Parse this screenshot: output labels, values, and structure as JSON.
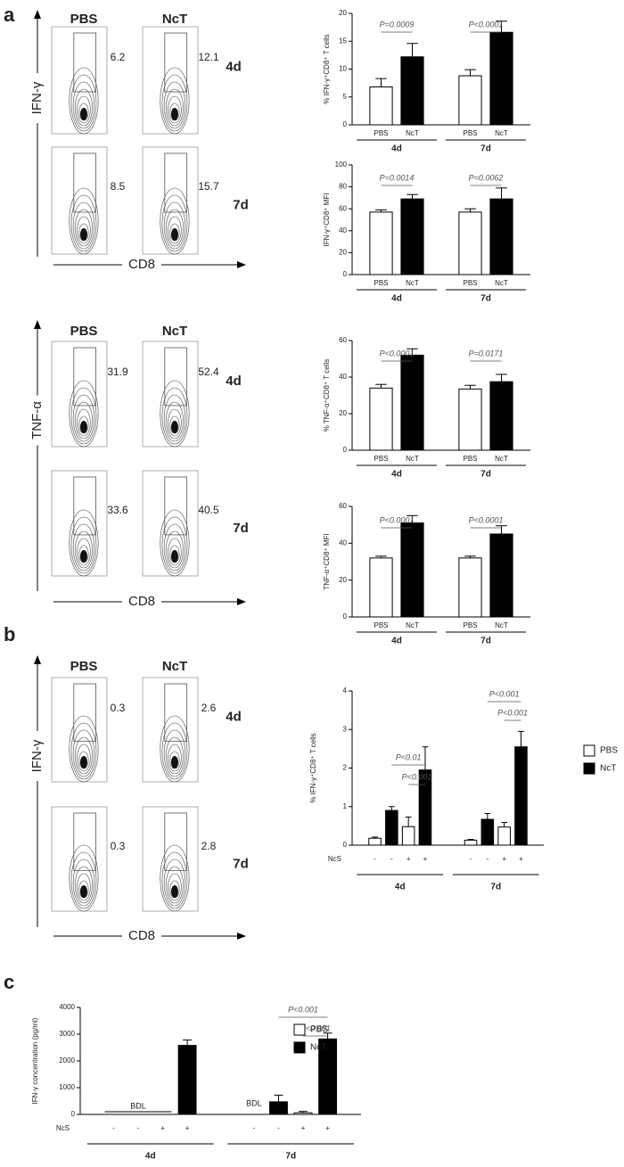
{
  "panel_labels": [
    "a",
    "b",
    "c"
  ],
  "flow": [
    {
      "y_label": "IFN-γ",
      "x_label": "CD8",
      "columns": [
        "PBS",
        "NcT"
      ],
      "rows": [
        "4d",
        "7d"
      ],
      "gates": [
        [
          6.2,
          12.1
        ],
        [
          8.5,
          15.7
        ]
      ]
    },
    {
      "y_label": "TNF-α",
      "x_label": "CD8",
      "columns": [
        "PBS",
        "NcT"
      ],
      "rows": [
        "4d",
        "7d"
      ],
      "gates": [
        [
          31.9,
          52.4
        ],
        [
          33.6,
          40.5
        ]
      ]
    },
    {
      "y_label": "IFN-γ",
      "x_label": "CD8",
      "columns": [
        "PBS",
        "NcT"
      ],
      "rows": [
        "4d",
        "7d"
      ],
      "gates": [
        [
          0.3,
          2.6
        ],
        [
          0.3,
          2.8
        ]
      ]
    }
  ],
  "chart_data": [
    {
      "type": "bar",
      "y_label": "% IFN-γ⁺CD8⁺ T cells",
      "ylim": [
        0,
        20
      ],
      "yticks": [
        0,
        5,
        10,
        15,
        20
      ],
      "values": [
        6.8,
        12.2,
        8.8,
        16.6
      ],
      "errors": [
        1.5,
        2.4,
        1.1,
        2.0
      ],
      "fills": [
        "#ffffff",
        "#000000",
        "#ffffff",
        "#000000"
      ],
      "bar_labels": [
        "PBS",
        "NcT",
        "PBS",
        "NcT"
      ],
      "groups": [
        "4d",
        "7d"
      ],
      "comparisons": [
        {
          "from": 0,
          "to": 1,
          "label": "P=0.0009"
        },
        {
          "from": 2,
          "to": 3,
          "label": "P<0.0001"
        }
      ]
    },
    {
      "type": "bar",
      "y_label": "IFN-γ⁺CD8⁺ MFI",
      "ylim": [
        0,
        100
      ],
      "yticks": [
        0,
        20,
        40,
        60,
        80,
        100
      ],
      "values": [
        57,
        69,
        57,
        69
      ],
      "errors": [
        2,
        4,
        3,
        10
      ],
      "fills": [
        "#ffffff",
        "#000000",
        "#ffffff",
        "#000000"
      ],
      "bar_labels": [
        "PBS",
        "NcT",
        "PBS",
        "NcT"
      ],
      "groups": [
        "4d",
        "7d"
      ],
      "comparisons": [
        {
          "from": 0,
          "to": 1,
          "label": "P=0.0014"
        },
        {
          "from": 2,
          "to": 3,
          "label": "P=0.0062"
        }
      ]
    },
    {
      "type": "bar",
      "y_label": "% TNF-α⁺CD8⁺ T cells",
      "ylim": [
        0,
        60
      ],
      "yticks": [
        0,
        20,
        40,
        60
      ],
      "values": [
        34,
        52,
        33.5,
        37.5
      ],
      "errors": [
        2,
        3.5,
        2,
        4
      ],
      "fills": [
        "#ffffff",
        "#000000",
        "#ffffff",
        "#000000"
      ],
      "bar_labels": [
        "PBS",
        "NcT",
        "PBS",
        "NcT"
      ],
      "groups": [
        "4d",
        "7d"
      ],
      "comparisons": [
        {
          "from": 0,
          "to": 1,
          "label": "P<0.0001"
        },
        {
          "from": 2,
          "to": 3,
          "label": "P=0.0171"
        }
      ]
    },
    {
      "type": "bar",
      "y_label": "TNF-α⁺CD8⁺ MFI",
      "ylim": [
        0,
        60
      ],
      "yticks": [
        0,
        20,
        40,
        60
      ],
      "values": [
        32,
        51,
        32,
        45
      ],
      "errors": [
        1,
        4,
        1,
        4.5
      ],
      "fills": [
        "#ffffff",
        "#000000",
        "#ffffff",
        "#000000"
      ],
      "bar_labels": [
        "PBS",
        "NcT",
        "PBS",
        "NcT"
      ],
      "groups": [
        "4d",
        "7d"
      ],
      "comparisons": [
        {
          "from": 0,
          "to": 1,
          "label": "P<0.0001"
        },
        {
          "from": 2,
          "to": 3,
          "label": "P<0.0001"
        }
      ]
    },
    {
      "type": "bar",
      "y_label": "% IFN-γ⁺CD8⁺ T cells",
      "ylim": [
        0,
        4
      ],
      "yticks": [
        0,
        1,
        2,
        3,
        4
      ],
      "values": [
        0.18,
        0.9,
        0.48,
        1.95,
        0.13,
        0.67,
        0.47,
        2.55
      ],
      "errors": [
        0.03,
        0.1,
        0.25,
        0.6,
        0.02,
        0.15,
        0.12,
        0.4
      ],
      "fills": [
        "#ffffff",
        "#000000",
        "#ffffff",
        "#000000",
        "#ffffff",
        "#000000",
        "#ffffff",
        "#000000"
      ],
      "ncs_label": "NcS",
      "ncs": [
        "-",
        "-",
        "+",
        "+",
        "-",
        "-",
        "+",
        "+"
      ],
      "groups": [
        "4d",
        "7d"
      ],
      "comparisons": [
        {
          "from": 1,
          "to": 3,
          "label": "P<0.01"
        },
        {
          "from": 2,
          "to": 3,
          "label": "P<0.001"
        },
        {
          "from": 5,
          "to": 7,
          "label": "P<0.001"
        },
        {
          "from": 6,
          "to": 7,
          "label": "P<0.001"
        }
      ],
      "legend": [
        {
          "name": "PBS",
          "color": "#ffffff"
        },
        {
          "name": "NcT",
          "color": "#000000"
        }
      ]
    },
    {
      "type": "bar",
      "y_label": "IFN-γ concentration (pg/ml)",
      "ylim": [
        0,
        4000
      ],
      "yticks": [
        0,
        1000,
        2000,
        3000,
        4000
      ],
      "values": [
        null,
        null,
        null,
        2580,
        null,
        470,
        60,
        2820
      ],
      "errors": [
        null,
        null,
        null,
        200,
        null,
        250,
        50,
        220
      ],
      "fills": [
        "#ffffff",
        "#000000",
        "#ffffff",
        "#000000",
        "#ffffff",
        "#000000",
        "#ffffff",
        "#000000"
      ],
      "ncs_label": "NcS",
      "ncs": [
        "-",
        "-",
        "+",
        "+",
        "-",
        "-",
        "+",
        "+"
      ],
      "groups": [
        "4d",
        "7d"
      ],
      "comparisons": [
        {
          "from": 5,
          "to": 7,
          "label": "P<0.001"
        },
        {
          "from": 6,
          "to": 7,
          "label": "P<0.001"
        }
      ],
      "annotations": [
        {
          "text": "BDL",
          "from": 0,
          "to": 2
        },
        {
          "text": "BDL",
          "from": 4,
          "to": 4
        }
      ],
      "legend": [
        {
          "name": "PBS",
          "color": "#ffffff"
        },
        {
          "name": "NcT",
          "color": "#000000"
        }
      ]
    }
  ]
}
